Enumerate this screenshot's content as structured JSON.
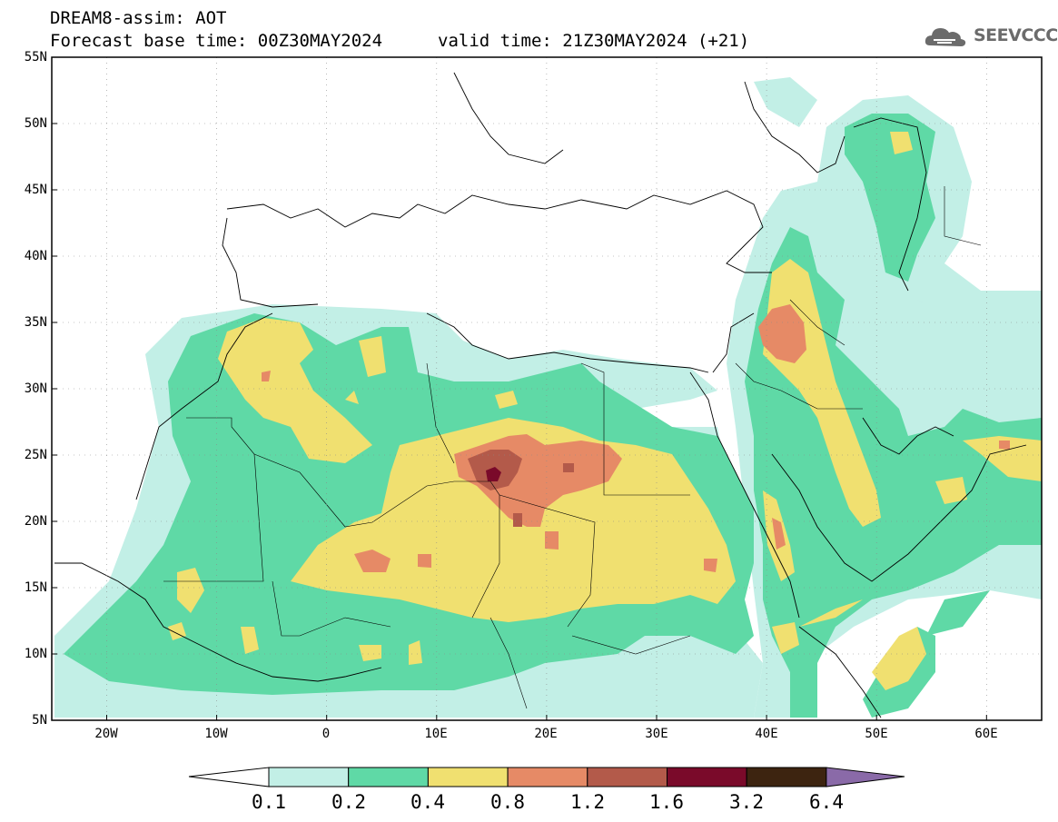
{
  "header": {
    "title_line1": "DREAM8-assim: AOT",
    "title_line2_left": "Forecast base time: 00Z30MAY2024",
    "title_line2_right": "valid time: 21Z30MAY2024 (+21)",
    "logo_text": "SEEVCCC"
  },
  "map": {
    "lon_range": [
      -25,
      65
    ],
    "lat_range": [
      5,
      55
    ],
    "lat_labels": [
      "55N",
      "50N",
      "45N",
      "40N",
      "35N",
      "30N",
      "25N",
      "20N",
      "15N",
      "10N",
      "5N"
    ],
    "lon_labels": [
      "20W",
      "10W",
      "0",
      "10E",
      "20E",
      "30E",
      "40E",
      "50E",
      "60E"
    ],
    "grid": true
  },
  "colorbar": {
    "labels": [
      "0.1",
      "0.2",
      "0.4",
      "0.8",
      "1.2",
      "1.6",
      "3.2",
      "6.4"
    ],
    "colors": [
      "#ffffff",
      "#c2efe6",
      "#5fd9a6",
      "#f0e070",
      "#e68a66",
      "#b35a4a",
      "#7a0a2a",
      "#3d2410",
      "#8a6aa8"
    ],
    "class_colors": {
      "0.1-0.2": "#c2efe6",
      "0.2-0.4": "#5fd9a6",
      "0.4-0.8": "#f0e070",
      "0.8-1.2": "#e68a66",
      "1.2-1.6": "#b35a4a",
      "1.6-3.2": "#7a0a2a",
      "3.2-6.4": "#3d2410"
    }
  }
}
